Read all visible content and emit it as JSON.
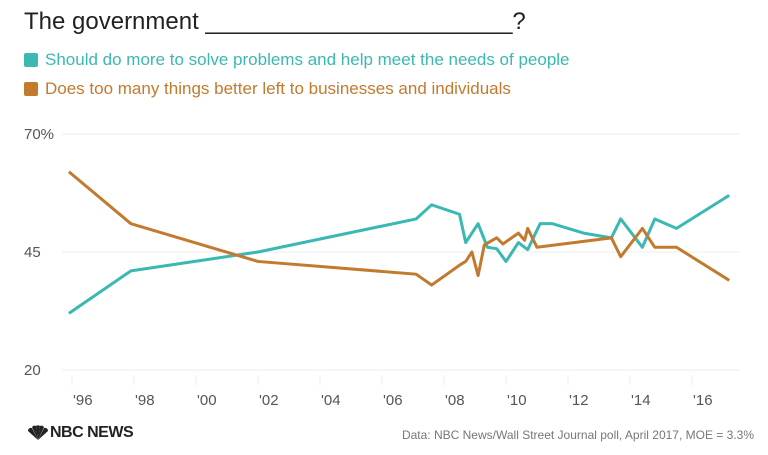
{
  "chart_data": {
    "type": "line",
    "title": "The government _______________________?",
    "ylim": [
      20,
      70
    ],
    "yticks": [
      {
        "v": 70,
        "label": "70%"
      },
      {
        "v": 45,
        "label": "45"
      },
      {
        "v": 20,
        "label": "20"
      }
    ],
    "xlim": [
      1995.5,
      2017.5
    ],
    "xticks": [
      {
        "v": 1996,
        "label": "'96"
      },
      {
        "v": 1998,
        "label": "'98"
      },
      {
        "v": 2000,
        "label": "'00"
      },
      {
        "v": 2002,
        "label": "'02"
      },
      {
        "v": 2004,
        "label": "'04"
      },
      {
        "v": 2006,
        "label": "'06"
      },
      {
        "v": 2008,
        "label": "'08"
      },
      {
        "v": 2010,
        "label": "'10"
      },
      {
        "v": 2012,
        "label": "'12"
      },
      {
        "v": 2014,
        "label": "'14"
      },
      {
        "v": 2016,
        "label": "'16"
      }
    ],
    "grid": true,
    "legend": "top-left",
    "series": [
      {
        "name": "Should do more to solve problems and help meet the needs of people",
        "color": "#3bb8b2",
        "points": [
          [
            1995.9,
            32
          ],
          [
            1997.9,
            41
          ],
          [
            2002,
            45
          ],
          [
            2007.1,
            52
          ],
          [
            2007.6,
            55
          ],
          [
            2008.5,
            53
          ],
          [
            2008.7,
            47
          ],
          [
            2009.1,
            51
          ],
          [
            2009.4,
            46
          ],
          [
            2009.7,
            45.7
          ],
          [
            2010.0,
            43
          ],
          [
            2010.4,
            47
          ],
          [
            2010.7,
            45.5
          ],
          [
            2011.1,
            51
          ],
          [
            2011.5,
            51
          ],
          [
            2012.5,
            49
          ],
          [
            2013.4,
            48
          ],
          [
            2013.7,
            52
          ],
          [
            2014.4,
            46
          ],
          [
            2014.8,
            52
          ],
          [
            2015.5,
            50
          ],
          [
            2017.2,
            57
          ]
        ]
      },
      {
        "name": "Does too many things better left to businesses and individuals",
        "color": "#c27a2e",
        "points": [
          [
            1995.9,
            62
          ],
          [
            1997.9,
            51
          ],
          [
            2002,
            43
          ],
          [
            2007.1,
            40.3
          ],
          [
            2007.6,
            38
          ],
          [
            2008.5,
            42.2
          ],
          [
            2008.7,
            43
          ],
          [
            2008.9,
            45
          ],
          [
            2009.1,
            40
          ],
          [
            2009.3,
            46.5
          ],
          [
            2009.7,
            48
          ],
          [
            2009.9,
            46.7
          ],
          [
            2010.4,
            49
          ],
          [
            2010.6,
            47.5
          ],
          [
            2010.7,
            50
          ],
          [
            2011.0,
            46
          ],
          [
            2013.4,
            48
          ],
          [
            2013.7,
            44
          ],
          [
            2014.4,
            50
          ],
          [
            2014.8,
            46
          ],
          [
            2015.5,
            46
          ],
          [
            2017.2,
            39
          ]
        ]
      }
    ]
  },
  "footer": {
    "logo": "NBC NEWS",
    "source": "Data: NBC News/Wall Street Journal poll, April 2017, MOE = 3.3%"
  }
}
